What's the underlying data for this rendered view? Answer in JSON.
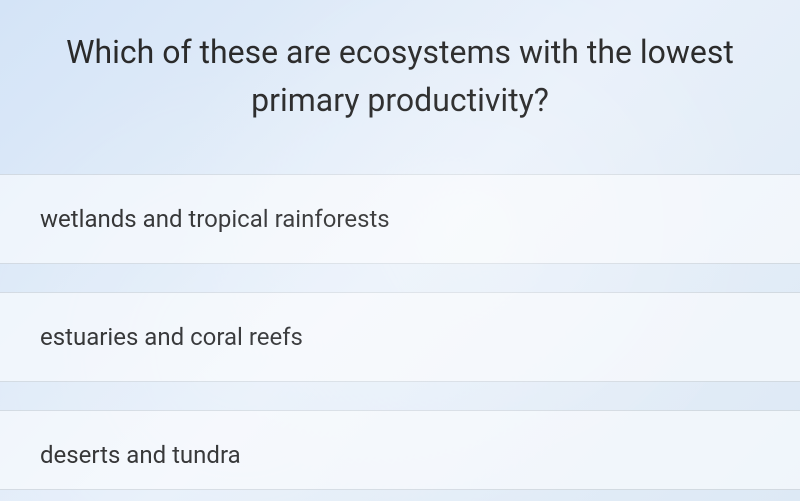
{
  "background_color": "#d4e4f7",
  "question": {
    "text_line1": "Which of these are ecosystems with the lowest",
    "text_line2": "primary productivity?",
    "font_size": 32,
    "color": "#2a2a2a"
  },
  "options": [
    {
      "label": "wetlands and tropical rainforests"
    },
    {
      "label": "estuaries and coral reefs"
    },
    {
      "label": "deserts and tundra"
    }
  ],
  "option_style": {
    "background": "rgba(255,255,255,0.55)",
    "font_size": 24,
    "text_color": "#333333",
    "border_color": "rgba(180,190,200,0.5)"
  }
}
